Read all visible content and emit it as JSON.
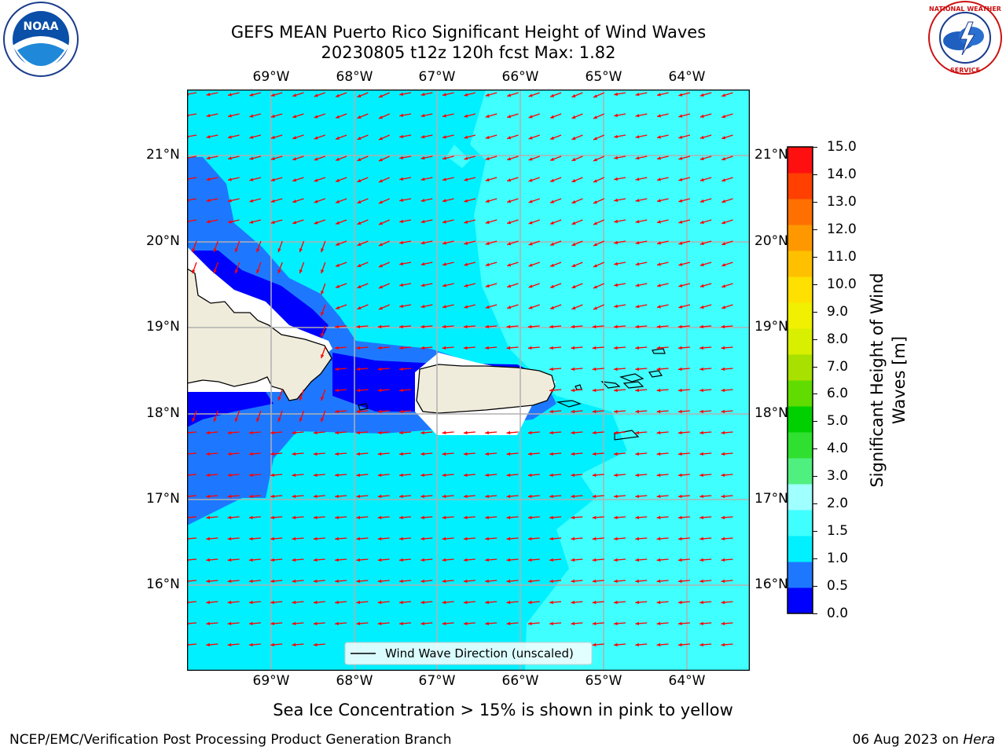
{
  "title_line1": "GEFS MEAN Puerto Rico Significant Height of Wind Waves",
  "title_line2": "20230805 t12z 120h fcst   Max: 1.82",
  "lon_labels": [
    "69°W",
    "68°W",
    "67°W",
    "66°W",
    "65°W",
    "64°W"
  ],
  "lat_labels": [
    "21°N",
    "20°N",
    "19°N",
    "18°N",
    "17°N",
    "16°N"
  ],
  "legend_label": "Wind Wave Direction (unscaled)",
  "colorbar": {
    "title_line1": "Significant Height of Wind",
    "title_line2": "Waves [m]",
    "ticks": [
      "15.0",
      "14.0",
      "13.0",
      "12.0",
      "11.0",
      "10.0",
      "9.0",
      "8.0",
      "7.0",
      "6.0",
      "5.0",
      "4.0",
      "3.0",
      "2.0",
      "1.5",
      "1.0",
      "0.5",
      "0.0"
    ],
    "colors": [
      "#0000ff",
      "#1e78ff",
      "#00f0ff",
      "#40ffff",
      "#a0ffff",
      "#50f080",
      "#30e030",
      "#00d000",
      "#60dc00",
      "#a8e000",
      "#d8ef00",
      "#f0f000",
      "#ffe000",
      "#ffc000",
      "#ff9800",
      "#ff7000",
      "#ff4000",
      "#ff1010"
    ],
    "bounds": [
      0.0,
      0.5,
      1.0,
      1.5,
      2.0,
      3.0,
      4.0,
      5.0,
      6.0,
      7.0,
      8.0,
      9.0,
      10.0,
      11.0,
      12.0,
      13.0,
      14.0,
      15.0
    ]
  },
  "subtitle": "Sea Ice Concentration > 15% is shown in pink to yellow",
  "footer_left": "NCEP/EMC/Verification Post Processing Product Generation Branch",
  "footer_date": "06 Aug 2023 on ",
  "footer_machine": "Hera",
  "arrow_color": "#ff0000",
  "logos": {
    "left": "NOAA",
    "right": "NATIONAL WEATHER SERVICE"
  }
}
